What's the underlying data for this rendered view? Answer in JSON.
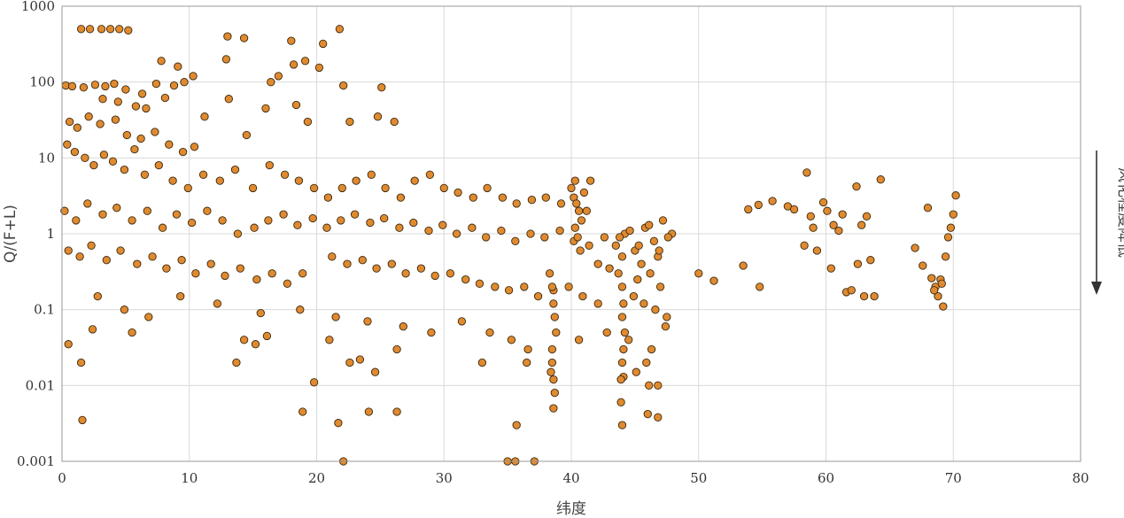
{
  "chart_data": {
    "type": "scatter",
    "xlabel": "纬度",
    "ylabel": "Q/(F+L)",
    "xlim": [
      0,
      80
    ],
    "ylim": [
      0.001,
      1000
    ],
    "yscale": "log",
    "grid": true,
    "x_ticks": [
      "0",
      "10",
      "20",
      "30",
      "40",
      "50",
      "60",
      "70",
      "80"
    ],
    "y_ticks": [
      "0.001",
      "0.01",
      "0.1",
      "1",
      "10",
      "100",
      "1000"
    ],
    "annotation": "风化程度降低",
    "point_color": "#e08a30",
    "point_edge_color": "#3a2a10",
    "series": [
      {
        "values": [
          [
            1.5,
            500
          ],
          [
            2.2,
            500
          ],
          [
            3.1,
            500
          ],
          [
            3.8,
            500
          ],
          [
            4.5,
            500
          ],
          [
            5.2,
            480
          ],
          [
            13.0,
            400
          ],
          [
            14.3,
            380
          ],
          [
            18.0,
            350
          ],
          [
            20.5,
            320
          ],
          [
            21.8,
            500
          ],
          [
            0.3,
            90
          ],
          [
            0.8,
            88
          ],
          [
            1.7,
            85
          ],
          [
            2.6,
            92
          ],
          [
            3.4,
            88
          ],
          [
            4.1,
            95
          ],
          [
            5.0,
            80
          ],
          [
            6.3,
            70
          ],
          [
            7.4,
            95
          ],
          [
            8.8,
            90
          ],
          [
            9.6,
            100
          ],
          [
            10.3,
            120
          ],
          [
            12.9,
            200
          ],
          [
            7.8,
            190
          ],
          [
            9.1,
            160
          ],
          [
            16.4,
            100
          ],
          [
            17.0,
            120
          ],
          [
            18.2,
            170
          ],
          [
            19.1,
            190
          ],
          [
            20.2,
            155
          ],
          [
            22.1,
            90
          ],
          [
            25.1,
            85
          ],
          [
            3.2,
            60
          ],
          [
            4.4,
            55
          ],
          [
            5.8,
            48
          ],
          [
            6.6,
            45
          ],
          [
            8.1,
            62
          ],
          [
            11.2,
            35
          ],
          [
            13.1,
            60
          ],
          [
            14.5,
            20
          ],
          [
            16.0,
            45
          ],
          [
            18.4,
            50
          ],
          [
            19.3,
            30
          ],
          [
            22.6,
            30
          ],
          [
            24.8,
            35
          ],
          [
            26.1,
            30
          ],
          [
            0.6,
            30
          ],
          [
            1.2,
            25
          ],
          [
            2.1,
            35
          ],
          [
            3.0,
            28
          ],
          [
            4.2,
            32
          ],
          [
            5.1,
            20
          ],
          [
            6.2,
            18
          ],
          [
            7.3,
            22
          ],
          [
            8.4,
            15
          ],
          [
            9.5,
            12
          ],
          [
            10.4,
            14
          ],
          [
            0.4,
            15
          ],
          [
            1.0,
            12
          ],
          [
            1.8,
            10
          ],
          [
            2.5,
            8
          ],
          [
            3.3,
            11
          ],
          [
            4.0,
            9
          ],
          [
            4.9,
            7
          ],
          [
            5.7,
            13
          ],
          [
            6.5,
            6
          ],
          [
            7.6,
            8
          ],
          [
            8.7,
            5
          ],
          [
            9.9,
            4
          ],
          [
            11.1,
            6
          ],
          [
            12.4,
            5
          ],
          [
            13.6,
            7
          ],
          [
            15.0,
            4
          ],
          [
            16.3,
            8
          ],
          [
            17.5,
            6
          ],
          [
            18.6,
            5
          ],
          [
            19.8,
            4
          ],
          [
            20.9,
            3
          ],
          [
            22.0,
            4
          ],
          [
            23.1,
            5
          ],
          [
            24.3,
            6
          ],
          [
            25.4,
            4
          ],
          [
            26.6,
            3
          ],
          [
            27.7,
            5
          ],
          [
            28.9,
            6
          ],
          [
            30.0,
            4
          ],
          [
            31.1,
            3.5
          ],
          [
            32.3,
            3
          ],
          [
            33.4,
            4
          ],
          [
            34.6,
            3
          ],
          [
            35.7,
            2.5
          ],
          [
            36.9,
            2.8
          ],
          [
            38.0,
            3
          ],
          [
            39.2,
            2.5
          ],
          [
            40.3,
            5
          ],
          [
            41.5,
            5
          ],
          [
            0.2,
            2
          ],
          [
            1.1,
            1.5
          ],
          [
            2.0,
            2.5
          ],
          [
            3.2,
            1.8
          ],
          [
            4.3,
            2.2
          ],
          [
            5.5,
            1.5
          ],
          [
            6.7,
            2
          ],
          [
            7.9,
            1.2
          ],
          [
            9.0,
            1.8
          ],
          [
            10.2,
            1.4
          ],
          [
            11.4,
            2
          ],
          [
            12.6,
            1.5
          ],
          [
            13.8,
            1
          ],
          [
            15.1,
            1.2
          ],
          [
            16.2,
            1.5
          ],
          [
            17.4,
            1.8
          ],
          [
            18.5,
            1.3
          ],
          [
            19.7,
            1.6
          ],
          [
            20.8,
            1.2
          ],
          [
            21.9,
            1.5
          ],
          [
            23.0,
            1.8
          ],
          [
            24.2,
            1.4
          ],
          [
            25.3,
            1.6
          ],
          [
            26.5,
            1.2
          ],
          [
            27.6,
            1.4
          ],
          [
            28.8,
            1.1
          ],
          [
            29.9,
            1.3
          ],
          [
            31.0,
            1.0
          ],
          [
            32.2,
            1.2
          ],
          [
            33.3,
            0.9
          ],
          [
            34.5,
            1.1
          ],
          [
            35.6,
            0.8
          ],
          [
            36.8,
            1.0
          ],
          [
            37.9,
            0.9
          ],
          [
            39.1,
            1.1
          ],
          [
            40.2,
            0.8
          ],
          [
            41.4,
            0.7
          ],
          [
            42.6,
            0.9
          ],
          [
            43.5,
            0.7
          ],
          [
            44.2,
            1.0
          ],
          [
            45.0,
            0.6
          ],
          [
            45.8,
            1.2
          ],
          [
            46.5,
            0.8
          ],
          [
            47.2,
            1.5
          ],
          [
            47.9,
            1.0
          ],
          [
            44.0,
            0.5
          ],
          [
            45.5,
            0.4
          ],
          [
            46.8,
            0.5
          ],
          [
            43.7,
            0.3
          ],
          [
            45.2,
            0.25
          ],
          [
            46.2,
            0.3
          ],
          [
            47.0,
            0.2
          ],
          [
            0.5,
            0.6
          ],
          [
            1.4,
            0.5
          ],
          [
            2.3,
            0.7
          ],
          [
            3.5,
            0.45
          ],
          [
            4.6,
            0.6
          ],
          [
            5.9,
            0.4
          ],
          [
            7.1,
            0.5
          ],
          [
            8.2,
            0.35
          ],
          [
            9.4,
            0.45
          ],
          [
            10.5,
            0.3
          ],
          [
            11.7,
            0.4
          ],
          [
            12.8,
            0.28
          ],
          [
            14.0,
            0.35
          ],
          [
            15.3,
            0.25
          ],
          [
            16.5,
            0.3
          ],
          [
            17.7,
            0.22
          ],
          [
            18.9,
            0.3
          ],
          [
            21.2,
            0.5
          ],
          [
            22.4,
            0.4
          ],
          [
            23.6,
            0.45
          ],
          [
            24.7,
            0.35
          ],
          [
            25.9,
            0.4
          ],
          [
            27.0,
            0.3
          ],
          [
            28.2,
            0.35
          ],
          [
            29.3,
            0.28
          ],
          [
            30.5,
            0.3
          ],
          [
            31.7,
            0.25
          ],
          [
            32.8,
            0.22
          ],
          [
            34.0,
            0.2
          ],
          [
            35.1,
            0.18
          ],
          [
            36.3,
            0.2
          ],
          [
            37.4,
            0.15
          ],
          [
            38.6,
            0.18
          ],
          [
            39.8,
            0.2
          ],
          [
            40.9,
            0.15
          ],
          [
            42.1,
            0.12
          ],
          [
            2.8,
            0.15
          ],
          [
            4.9,
            0.1
          ],
          [
            6.8,
            0.08
          ],
          [
            9.3,
            0.15
          ],
          [
            12.2,
            0.12
          ],
          [
            15.6,
            0.09
          ],
          [
            18.7,
            0.1
          ],
          [
            21.5,
            0.08
          ],
          [
            24.0,
            0.07
          ],
          [
            26.8,
            0.06
          ],
          [
            29.0,
            0.05
          ],
          [
            31.4,
            0.07
          ],
          [
            33.6,
            0.05
          ],
          [
            35.3,
            0.04
          ],
          [
            36.6,
            0.03
          ],
          [
            38.5,
            0.03
          ],
          [
            40.6,
            0.04
          ],
          [
            42.8,
            0.05
          ],
          [
            44.5,
            0.04
          ],
          [
            46.3,
            0.03
          ],
          [
            47.4,
            0.06
          ],
          [
            0.5,
            0.035
          ],
          [
            1.5,
            0.02
          ],
          [
            2.4,
            0.055
          ],
          [
            5.5,
            0.05
          ],
          [
            13.7,
            0.02
          ],
          [
            14.3,
            0.04
          ],
          [
            15.2,
            0.035
          ],
          [
            16.1,
            0.045
          ],
          [
            21.0,
            0.04
          ],
          [
            22.6,
            0.02
          ],
          [
            23.4,
            0.022
          ],
          [
            24.6,
            0.015
          ],
          [
            26.3,
            0.03
          ],
          [
            33.0,
            0.02
          ],
          [
            36.5,
            0.02
          ],
          [
            38.4,
            0.015
          ],
          [
            1.6,
            0.0035
          ],
          [
            18.9,
            0.0045
          ],
          [
            19.8,
            0.011
          ],
          [
            21.7,
            0.0032
          ],
          [
            22.1,
            0.001
          ],
          [
            24.1,
            0.0045
          ],
          [
            26.3,
            0.0045
          ],
          [
            35.0,
            0.001
          ],
          [
            35.6,
            0.001
          ],
          [
            35.7,
            0.003
          ],
          [
            37.1,
            0.001
          ],
          [
            38.6,
            0.005
          ],
          [
            38.7,
            0.008
          ],
          [
            43.9,
            0.006
          ],
          [
            44.0,
            0.003
          ],
          [
            46.0,
            0.0042
          ],
          [
            46.8,
            0.0038
          ],
          [
            46.1,
            0.01
          ],
          [
            46.8,
            0.01
          ],
          [
            44.1,
            0.013
          ],
          [
            45.1,
            0.015
          ],
          [
            45.9,
            0.02
          ],
          [
            38.3,
            0.3
          ],
          [
            38.5,
            0.2
          ],
          [
            38.6,
            0.12
          ],
          [
            38.7,
            0.08
          ],
          [
            38.8,
            0.05
          ],
          [
            38.5,
            0.02
          ],
          [
            38.6,
            0.012
          ],
          [
            44.0,
            0.2
          ],
          [
            44.1,
            0.12
          ],
          [
            44.0,
            0.08
          ],
          [
            44.2,
            0.05
          ],
          [
            44.1,
            0.03
          ],
          [
            44.0,
            0.02
          ],
          [
            43.9,
            0.012
          ],
          [
            40.0,
            4
          ],
          [
            40.2,
            3
          ],
          [
            40.4,
            2.5
          ],
          [
            40.6,
            2
          ],
          [
            40.8,
            1.5
          ],
          [
            40.3,
            1.2
          ],
          [
            40.5,
            0.9
          ],
          [
            40.7,
            0.6
          ],
          [
            41.0,
            3.5
          ],
          [
            41.2,
            2
          ],
          [
            42.1,
            0.4
          ],
          [
            43.0,
            0.35
          ],
          [
            43.8,
            0.9
          ],
          [
            44.6,
            1.1
          ],
          [
            45.3,
            0.7
          ],
          [
            46.1,
            1.3
          ],
          [
            46.9,
            0.6
          ],
          [
            47.6,
            0.9
          ],
          [
            44.9,
            0.15
          ],
          [
            45.7,
            0.12
          ],
          [
            46.6,
            0.1
          ],
          [
            47.5,
            0.08
          ],
          [
            50.0,
            0.3
          ],
          [
            51.2,
            0.24
          ],
          [
            53.5,
            0.38
          ],
          [
            54.8,
            0.2
          ],
          [
            53.9,
            2.1
          ],
          [
            54.7,
            2.4
          ],
          [
            55.8,
            2.7
          ],
          [
            57.0,
            2.3
          ],
          [
            57.5,
            2.1
          ],
          [
            58.3,
            0.7
          ],
          [
            58.5,
            6.4
          ],
          [
            58.8,
            1.7
          ],
          [
            59.0,
            1.2
          ],
          [
            59.3,
            0.6
          ],
          [
            59.8,
            2.6
          ],
          [
            60.1,
            2.0
          ],
          [
            60.4,
            0.35
          ],
          [
            60.6,
            1.3
          ],
          [
            61.0,
            1.1
          ],
          [
            61.3,
            1.8
          ],
          [
            61.6,
            0.17
          ],
          [
            62.0,
            0.18
          ],
          [
            62.4,
            4.2
          ],
          [
            62.5,
            0.4
          ],
          [
            62.8,
            1.3
          ],
          [
            63.0,
            0.15
          ],
          [
            63.2,
            1.7
          ],
          [
            63.5,
            0.45
          ],
          [
            63.8,
            0.15
          ],
          [
            64.3,
            5.2
          ],
          [
            67.0,
            0.65
          ],
          [
            67.6,
            0.38
          ],
          [
            68.0,
            2.2
          ],
          [
            68.3,
            0.26
          ],
          [
            68.6,
            0.2
          ],
          [
            68.8,
            0.15
          ],
          [
            69.0,
            0.25
          ],
          [
            69.2,
            0.11
          ],
          [
            69.4,
            0.5
          ],
          [
            69.6,
            0.9
          ],
          [
            69.8,
            1.2
          ],
          [
            70.0,
            1.8
          ],
          [
            70.2,
            3.2
          ],
          [
            69.1,
            0.22
          ],
          [
            68.5,
            0.18
          ]
        ]
      }
    ]
  }
}
